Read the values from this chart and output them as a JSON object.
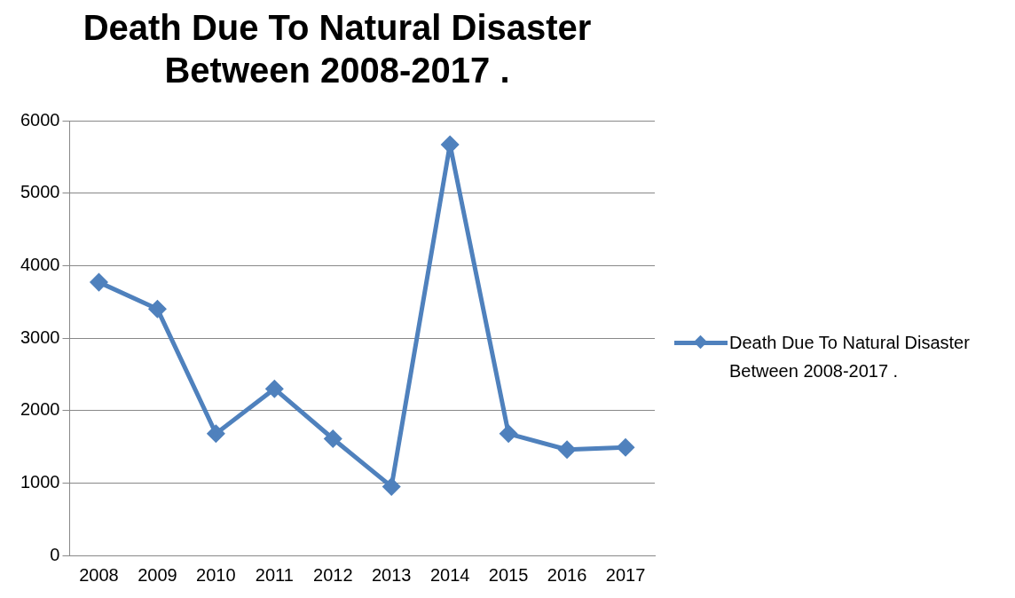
{
  "chart_data": {
    "type": "line",
    "title": "Death Due To Natural Disaster Between 2008-2017 .",
    "categories": [
      "2008",
      "2009",
      "2010",
      "2011",
      "2012",
      "2013",
      "2014",
      "2015",
      "2016",
      "2017"
    ],
    "series": [
      {
        "name": "Death Due To Natural Disaster Between 2008-2017 .",
        "color": "#4f81bd",
        "values": [
          3770,
          3400,
          1680,
          2300,
          1610,
          950,
          5670,
          1680,
          1460,
          1490
        ]
      }
    ],
    "ylim": [
      0,
      6000
    ],
    "yticks": [
      0,
      1000,
      2000,
      3000,
      4000,
      5000,
      6000
    ],
    "grid": "y",
    "legend": "right",
    "marker": "diamond",
    "line_style": "solid"
  }
}
